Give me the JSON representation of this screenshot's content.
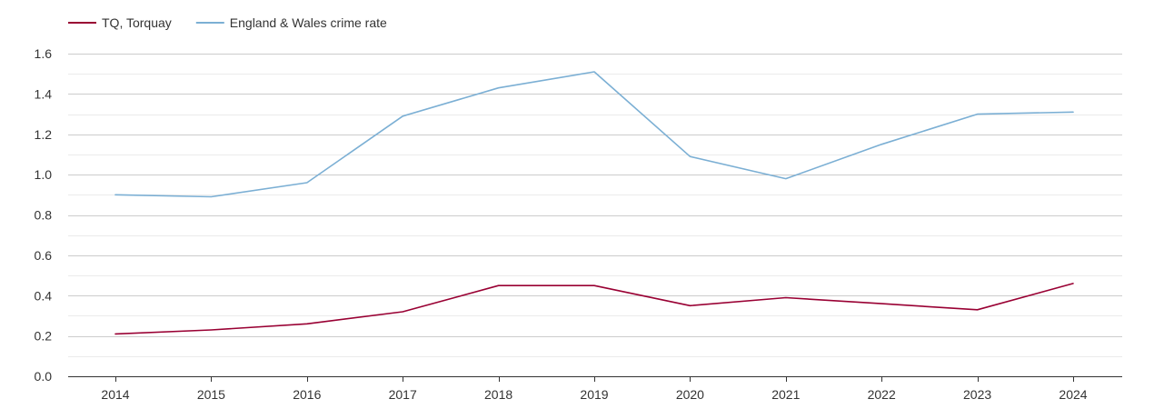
{
  "chart_data": {
    "type": "line",
    "title": "",
    "xlabel": "",
    "ylabel": "",
    "categories": [
      "2014",
      "2015",
      "2016",
      "2017",
      "2018",
      "2019",
      "2020",
      "2021",
      "2022",
      "2023",
      "2024"
    ],
    "ylim": [
      0,
      1.6
    ],
    "yticks": [
      "0.0",
      "0.2",
      "0.4",
      "0.6",
      "0.8",
      "1.0",
      "1.2",
      "1.4",
      "1.6"
    ],
    "grid": true,
    "legend_position": "top-left",
    "series": [
      {
        "name": "TQ, Torquay",
        "color": "#990033",
        "values": [
          0.21,
          0.23,
          0.26,
          0.32,
          0.45,
          0.45,
          0.35,
          0.39,
          0.36,
          0.33,
          0.46
        ]
      },
      {
        "name": "England & Wales crime rate",
        "color": "#7bafd4",
        "values": [
          0.9,
          0.89,
          0.96,
          1.29,
          1.43,
          1.51,
          1.09,
          0.98,
          1.15,
          1.3,
          1.31
        ]
      }
    ]
  }
}
